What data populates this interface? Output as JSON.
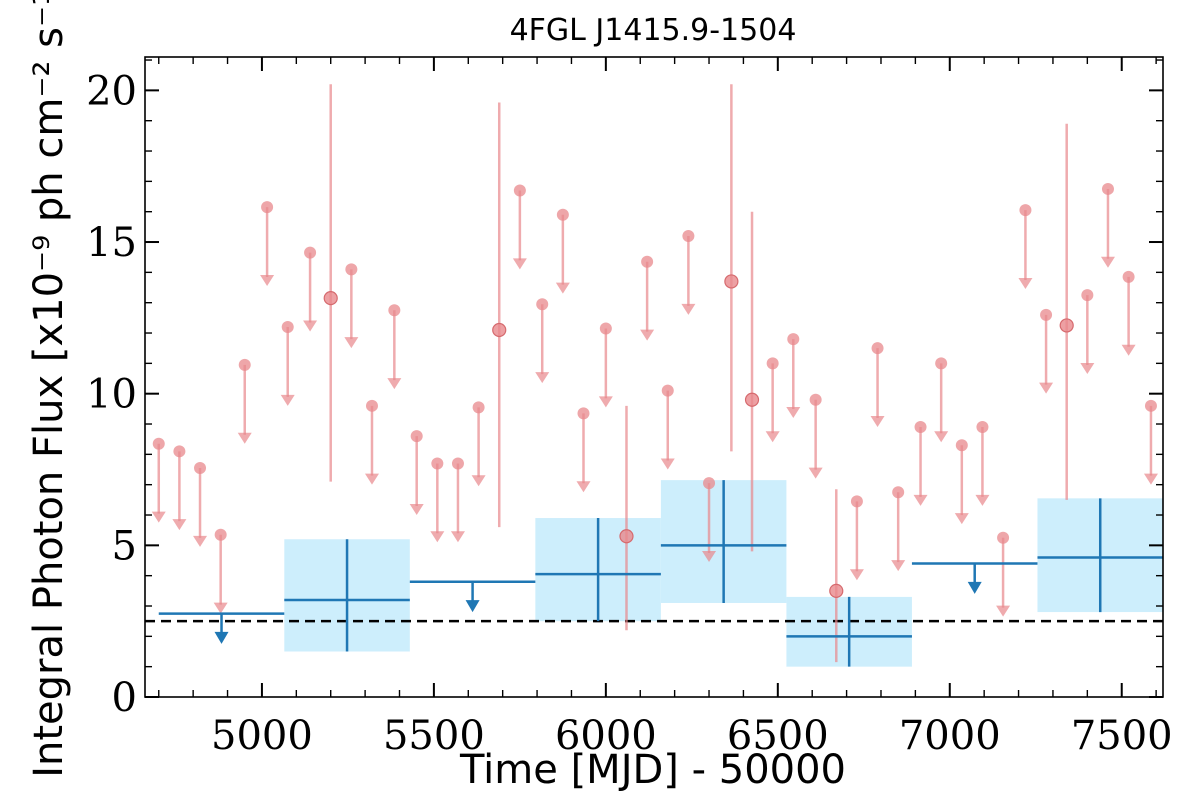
{
  "chart_data": {
    "type": "scatter",
    "title": "4FGL J1415.9-1504",
    "xlabel": "Time [MJD] - 50000",
    "ylabel": "Integral Photon Flux [x10⁻⁹ ph cm⁻² s⁻¹]",
    "xlim": [
      4660,
      7620
    ],
    "ylim": [
      0,
      21.1
    ],
    "xticks": [
      5000,
      5500,
      6000,
      6500,
      7000,
      7500
    ],
    "yticks": [
      0,
      5,
      10,
      15,
      20
    ],
    "grid": false,
    "reference_line": {
      "y": 2.5,
      "style": "dashed",
      "color": "#000000"
    },
    "colors": {
      "fine": "#e8888c",
      "coarse": "#1f77b4",
      "band": "#cdeefc"
    },
    "series": [
      {
        "points": [
          {
            "x": 4700,
            "y": 8.35,
            "ul": true
          },
          {
            "x": 4760,
            "y": 8.1,
            "ul": true
          },
          {
            "x": 4820,
            "y": 7.55,
            "ul": true
          },
          {
            "x": 4880,
            "y": 5.35,
            "ul": true
          },
          {
            "x": 4950,
            "y": 10.95,
            "ul": true
          },
          {
            "x": 5015,
            "y": 16.15,
            "ul": true
          },
          {
            "x": 5075,
            "y": 12.2,
            "ul": true
          },
          {
            "x": 5140,
            "y": 14.65,
            "ul": true
          },
          {
            "x": 5200,
            "y": 13.15,
            "ul": false,
            "ylo": 7.1,
            "yhi": 20.2
          },
          {
            "x": 5260,
            "y": 14.1,
            "ul": true
          },
          {
            "x": 5320,
            "y": 9.6,
            "ul": true
          },
          {
            "x": 5385,
            "y": 12.75,
            "ul": true
          },
          {
            "x": 5450,
            "y": 8.6,
            "ul": true
          },
          {
            "x": 5510,
            "y": 7.7,
            "ul": true
          },
          {
            "x": 5570,
            "y": 7.7,
            "ul": true
          },
          {
            "x": 5630,
            "y": 9.55,
            "ul": true
          },
          {
            "x": 5690,
            "y": 12.1,
            "ul": false,
            "ylo": 5.6,
            "yhi": 19.6
          },
          {
            "x": 5750,
            "y": 16.7,
            "ul": true
          },
          {
            "x": 5815,
            "y": 12.95,
            "ul": true
          },
          {
            "x": 5875,
            "y": 15.9,
            "ul": true
          },
          {
            "x": 5935,
            "y": 9.35,
            "ul": true
          },
          {
            "x": 6000,
            "y": 12.15,
            "ul": true
          },
          {
            "x": 6060,
            "y": 5.3,
            "ul": false,
            "ylo": 2.2,
            "yhi": 9.6
          },
          {
            "x": 6120,
            "y": 14.35,
            "ul": true
          },
          {
            "x": 6180,
            "y": 10.1,
            "ul": true
          },
          {
            "x": 6240,
            "y": 15.2,
            "ul": true
          },
          {
            "x": 6300,
            "y": 7.05,
            "ul": true
          },
          {
            "x": 6365,
            "y": 13.7,
            "ul": false,
            "ylo": 8.1,
            "yhi": 20.2
          },
          {
            "x": 6425,
            "y": 9.8,
            "ul": false,
            "ylo": 4.8,
            "yhi": 16.0
          },
          {
            "x": 6485,
            "y": 11.0,
            "ul": true
          },
          {
            "x": 6545,
            "y": 11.8,
            "ul": true
          },
          {
            "x": 6610,
            "y": 9.8,
            "ul": true
          },
          {
            "x": 6670,
            "y": 3.5,
            "ul": false,
            "ylo": 1.15,
            "yhi": 6.85
          },
          {
            "x": 6730,
            "y": 6.45,
            "ul": true
          },
          {
            "x": 6790,
            "y": 11.5,
            "ul": true
          },
          {
            "x": 6850,
            "y": 6.75,
            "ul": true
          },
          {
            "x": 6915,
            "y": 8.9,
            "ul": true
          },
          {
            "x": 6975,
            "y": 11.0,
            "ul": true
          },
          {
            "x": 7035,
            "y": 8.3,
            "ul": true
          },
          {
            "x": 7095,
            "y": 8.9,
            "ul": true
          },
          {
            "x": 7155,
            "y": 5.25,
            "ul": true
          },
          {
            "x": 7220,
            "y": 16.05,
            "ul": true
          },
          {
            "x": 7280,
            "y": 12.6,
            "ul": true
          },
          {
            "x": 7340,
            "y": 12.25,
            "ul": false,
            "ylo": 6.5,
            "yhi": 18.9
          },
          {
            "x": 7400,
            "y": 13.25,
            "ul": true
          },
          {
            "x": 7460,
            "y": 16.75,
            "ul": true
          },
          {
            "x": 7520,
            "y": 13.85,
            "ul": true
          },
          {
            "x": 7585,
            "y": 9.6,
            "ul": true
          }
        ]
      },
      {
        "bins": [
          {
            "x0": 4700,
            "x1": 5065,
            "y": 2.75,
            "ul": true
          },
          {
            "x0": 5065,
            "x1": 5430,
            "y": 3.2,
            "ul": false,
            "ylo": 1.5,
            "yhi": 5.2
          },
          {
            "x0": 5430,
            "x1": 5795,
            "y": 3.8,
            "ul": true
          },
          {
            "x0": 5795,
            "x1": 6160,
            "y": 4.05,
            "ul": false,
            "ylo": 2.5,
            "yhi": 5.9
          },
          {
            "x0": 6160,
            "x1": 6525,
            "y": 5.0,
            "ul": false,
            "ylo": 3.1,
            "yhi": 7.15
          },
          {
            "x0": 6525,
            "x1": 6890,
            "y": 2.0,
            "ul": false,
            "ylo": 1.0,
            "yhi": 3.3
          },
          {
            "x0": 6890,
            "x1": 7255,
            "y": 4.4,
            "ul": true
          },
          {
            "x0": 7255,
            "x1": 7620,
            "y": 4.6,
            "ul": false,
            "ylo": 2.8,
            "yhi": 6.55
          }
        ]
      }
    ]
  }
}
